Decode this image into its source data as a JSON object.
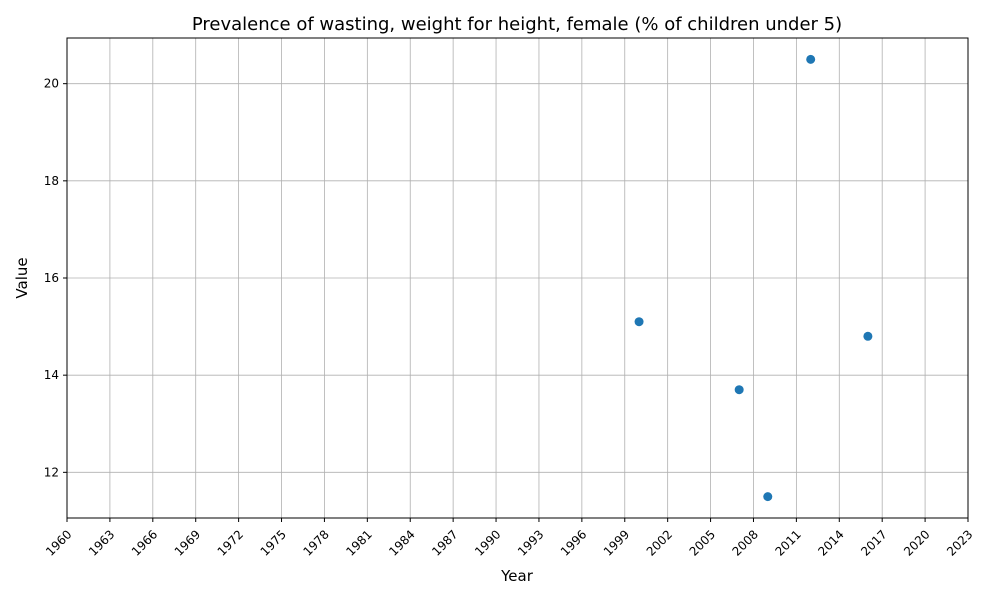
{
  "chart_data": {
    "type": "scatter",
    "title": "Prevalence of wasting, weight for height, female (% of children under 5)",
    "xlabel": "Year",
    "ylabel": "Value",
    "xlim": [
      1960,
      2023
    ],
    "ylim": [
      11.06,
      20.94
    ],
    "x_ticks": [
      1960,
      1963,
      1966,
      1969,
      1972,
      1975,
      1978,
      1981,
      1984,
      1987,
      1990,
      1993,
      1996,
      1999,
      2002,
      2005,
      2008,
      2011,
      2014,
      2017,
      2020,
      2023
    ],
    "y_ticks": [
      12,
      14,
      16,
      18,
      20
    ],
    "grid": true,
    "series": [
      {
        "color": "#1f77b4",
        "points": [
          {
            "x": 2000,
            "y": 15.1
          },
          {
            "x": 2007,
            "y": 13.7
          },
          {
            "x": 2009,
            "y": 11.5
          },
          {
            "x": 2012,
            "y": 20.5
          },
          {
            "x": 2016,
            "y": 14.8
          }
        ]
      }
    ]
  }
}
